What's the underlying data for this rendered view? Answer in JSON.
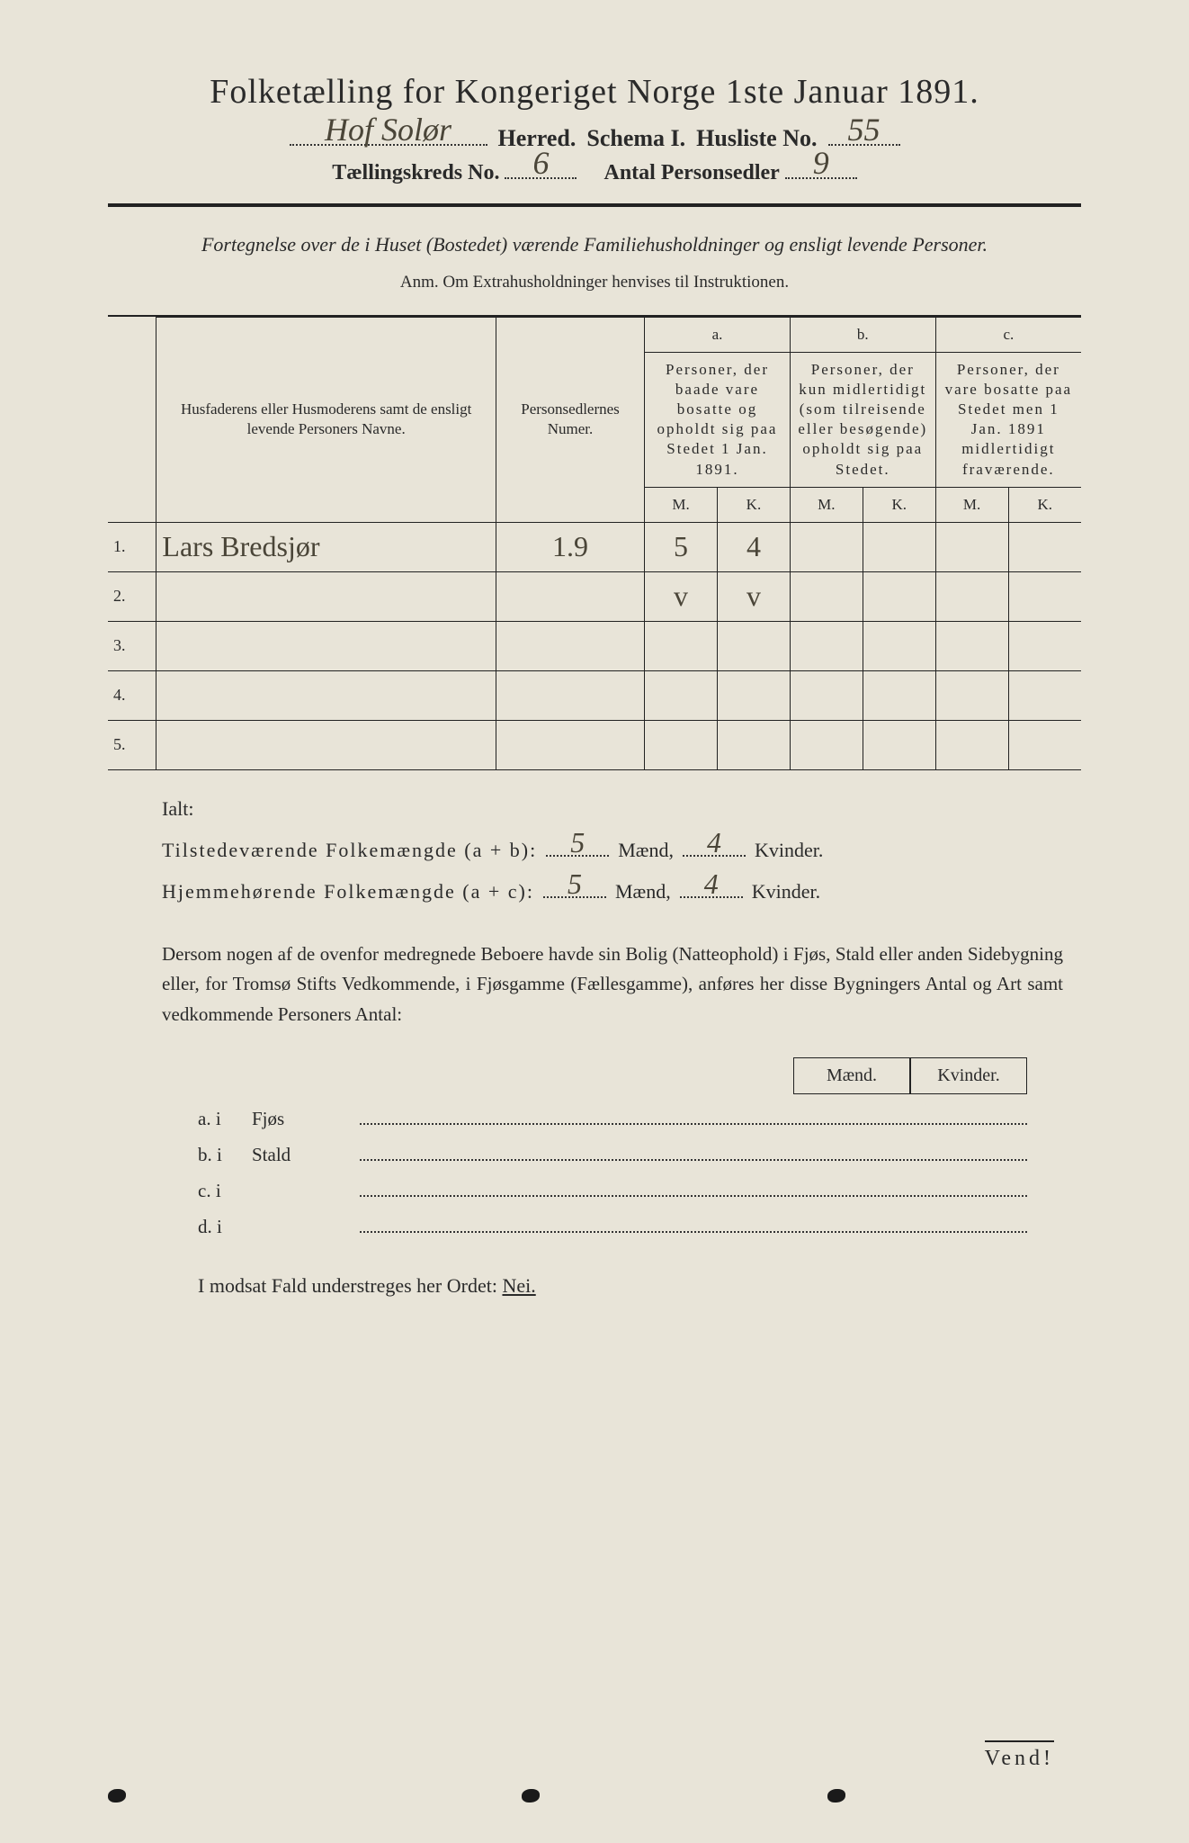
{
  "title": "Folketælling for Kongeriget Norge 1ste Januar 1891.",
  "header": {
    "herred_value": "Hof Solør",
    "herred_label": "Herred.",
    "schema_label": "Schema I.",
    "husliste_label": "Husliste No.",
    "husliste_value": "55",
    "kreds_label": "Tællingskreds No.",
    "kreds_value": "6",
    "personsedler_label": "Antal Personsedler",
    "personsedler_value": "9"
  },
  "description": "Fortegnelse over de i Huset (Bostedet) værende Familiehusholdninger og ensligt levende Personer.",
  "anm": "Anm. Om Extrahusholdninger henvises til Instruktionen.",
  "table": {
    "col1": "Husfaderens eller Husmoderens samt de ensligt levende Personers Navne.",
    "col2": "Personsedlernes Numer.",
    "col_a_label": "a.",
    "col_a": "Personer, der baade vare bosatte og opholdt sig paa Stedet 1 Jan. 1891.",
    "col_b_label": "b.",
    "col_b": "Personer, der kun midlertidigt (som tilreisende eller besøgende) opholdt sig paa Stedet.",
    "col_c_label": "c.",
    "col_c": "Personer, der vare bosatte paa Stedet men 1 Jan. 1891 midlertidigt fraværende.",
    "m_label": "M.",
    "k_label": "K.",
    "rows": [
      {
        "num": "1.",
        "name": "Lars Bredsjør",
        "sedler": "1.9",
        "a_m": "5",
        "a_k": "4",
        "b_m": "",
        "b_k": "",
        "c_m": "",
        "c_k": ""
      },
      {
        "num": "2.",
        "name": "",
        "sedler": "",
        "a_m": "v",
        "a_k": "v",
        "b_m": "",
        "b_k": "",
        "c_m": "",
        "c_k": ""
      },
      {
        "num": "3.",
        "name": "",
        "sedler": "",
        "a_m": "",
        "a_k": "",
        "b_m": "",
        "b_k": "",
        "c_m": "",
        "c_k": ""
      },
      {
        "num": "4.",
        "name": "",
        "sedler": "",
        "a_m": "",
        "a_k": "",
        "b_m": "",
        "b_k": "",
        "c_m": "",
        "c_k": ""
      },
      {
        "num": "5.",
        "name": "",
        "sedler": "",
        "a_m": "",
        "a_k": "",
        "b_m": "",
        "b_k": "",
        "c_m": "",
        "c_k": ""
      }
    ]
  },
  "summary": {
    "ialt_label": "Ialt:",
    "tilstede_label": "Tilstedeværende Folkemængde (a + b):",
    "tilstede_m": "5",
    "tilstede_k": "4",
    "hjemme_label": "Hjemmehørende Folkemængde (a + c):",
    "hjemme_m": "5",
    "hjemme_k": "4",
    "maend_label": "Mænd,",
    "kvinder_label": "Kvinder."
  },
  "paragraph": "Dersom nogen af de ovenfor medregnede Beboere havde sin Bolig (Natteophold) i Fjøs, Stald eller anden Sidebygning eller, for Tromsø Stifts Vedkommende, i Fjøsgamme (Fællesgamme), anføres her disse Bygningers Antal og Art samt vedkommende Personers Antal:",
  "sub_table": {
    "maend": "Mænd.",
    "kvinder": "Kvinder.",
    "rows": [
      {
        "label": "a. i",
        "text": "Fjøs"
      },
      {
        "label": "b. i",
        "text": "Stald"
      },
      {
        "label": "c. i",
        "text": ""
      },
      {
        "label": "d. i",
        "text": ""
      }
    ]
  },
  "footer": "I modsat Fald understreges her Ordet:",
  "footer_nei": "Nei.",
  "vend": "Vend!",
  "colors": {
    "background": "#e8e4d8",
    "text": "#2a2a2a",
    "handwriting": "#4a4538",
    "border": "#222222"
  },
  "typography": {
    "title_fontsize": 38,
    "body_fontsize": 22,
    "table_header_fontsize": 17,
    "handwriting_fontsize": 36
  }
}
